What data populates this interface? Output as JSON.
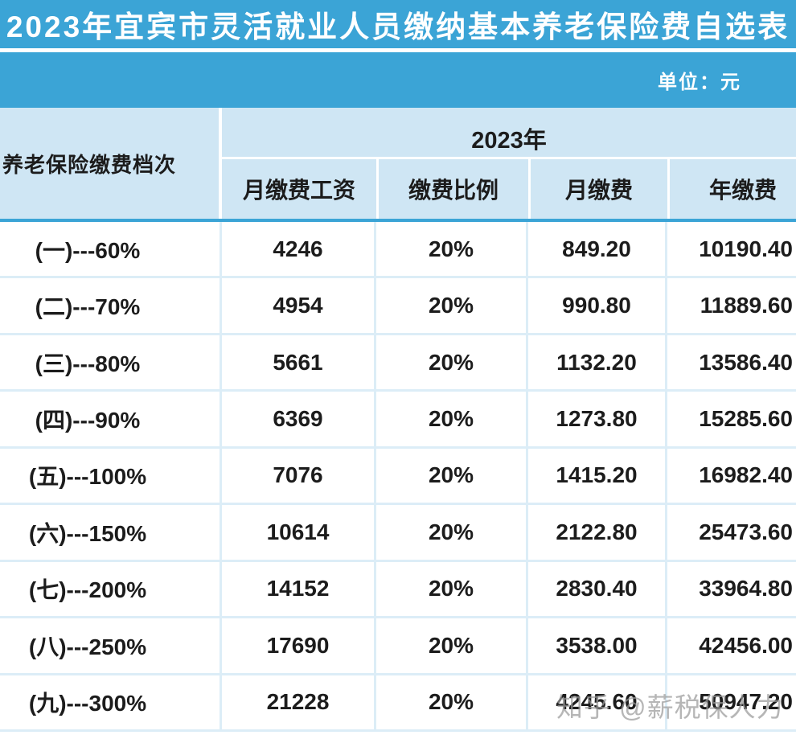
{
  "title": "2023年宜宾市灵活就业人员缴纳基本养老保险费自选表",
  "unit_label": "单位：元",
  "table": {
    "tier_header": "养老保险缴费档次",
    "year_header": "2023年",
    "sub_headers": [
      "月缴费工资",
      "缴费比例",
      "月缴费",
      "年缴费"
    ],
    "rows": [
      {
        "tier": "(一)---60%",
        "salary": "4246",
        "rate": "20%",
        "monthly": "849.20",
        "yearly": "10190.40"
      },
      {
        "tier": "(二)---70%",
        "salary": "4954",
        "rate": "20%",
        "monthly": "990.80",
        "yearly": "11889.60"
      },
      {
        "tier": "(三)---80%",
        "salary": "5661",
        "rate": "20%",
        "monthly": "1132.20",
        "yearly": "13586.40"
      },
      {
        "tier": "(四)---90%",
        "salary": "6369",
        "rate": "20%",
        "monthly": "1273.80",
        "yearly": "15285.60"
      },
      {
        "tier": "(五)---100%",
        "salary": "7076",
        "rate": "20%",
        "monthly": "1415.20",
        "yearly": "16982.40"
      },
      {
        "tier": "(六)---150%",
        "salary": "10614",
        "rate": "20%",
        "monthly": "2122.80",
        "yearly": "25473.60"
      },
      {
        "tier": "(七)---200%",
        "salary": "14152",
        "rate": "20%",
        "monthly": "2830.40",
        "yearly": "33964.80"
      },
      {
        "tier": "(八)---250%",
        "salary": "17690",
        "rate": "20%",
        "monthly": "3538.00",
        "yearly": "42456.00"
      },
      {
        "tier": "(九)---300%",
        "salary": "21228",
        "rate": "20%",
        "monthly": "4245.60",
        "yearly": "50947.20"
      }
    ]
  },
  "watermark": "知乎 @薪税保人力",
  "colors": {
    "accent_blue": "#3BA4D6",
    "header_light_blue": "#CFE6F4",
    "body_divider": "#DCEDF7",
    "text": "#1C1C1C",
    "watermark_gray": "#9A9A9A"
  },
  "chart_data": {
    "type": "table",
    "title": "2023年宜宾市灵活就业人员缴纳基本养老保险费自选表",
    "unit": "元",
    "column_groups": [
      {
        "label": "2023年",
        "columns": [
          "月缴费工资",
          "缴费比例",
          "月缴费",
          "年缴费"
        ]
      }
    ],
    "columns": [
      "养老保险缴费档次",
      "月缴费工资",
      "缴费比例",
      "月缴费",
      "年缴费"
    ],
    "rows": [
      [
        "(一)---60%",
        4246,
        "20%",
        849.2,
        10190.4
      ],
      [
        "(二)---70%",
        4954,
        "20%",
        990.8,
        11889.6
      ],
      [
        "(三)---80%",
        5661,
        "20%",
        1132.2,
        13586.4
      ],
      [
        "(四)---90%",
        6369,
        "20%",
        1273.8,
        15285.6
      ],
      [
        "(五)---100%",
        7076,
        "20%",
        1415.2,
        16982.4
      ],
      [
        "(六)---150%",
        10614,
        "20%",
        2122.8,
        25473.6
      ],
      [
        "(七)---200%",
        14152,
        "20%",
        2830.4,
        33964.8
      ],
      [
        "(八)---250%",
        17690,
        "20%",
        3538.0,
        42456.0
      ],
      [
        "(九)---300%",
        21228,
        "20%",
        4245.6,
        50947.2
      ]
    ]
  }
}
